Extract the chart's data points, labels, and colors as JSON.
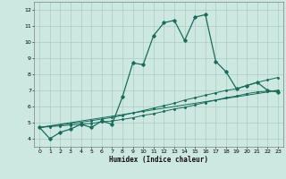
{
  "xlabel": "Humidex (Indice chaleur)",
  "bg_color": "#cce8e0",
  "grid_color": "#aaccC4",
  "line_color": "#1a6b5a",
  "xlim": [
    -0.5,
    23.5
  ],
  "ylim": [
    3.5,
    12.5
  ],
  "xticks": [
    0,
    1,
    2,
    3,
    4,
    5,
    6,
    7,
    8,
    9,
    10,
    11,
    12,
    13,
    14,
    15,
    16,
    17,
    18,
    19,
    20,
    21,
    22,
    23
  ],
  "yticks": [
    4,
    5,
    6,
    7,
    8,
    9,
    10,
    11,
    12
  ],
  "series1_x": [
    0,
    1,
    2,
    3,
    4,
    5,
    6,
    7,
    8,
    9,
    10,
    11,
    12,
    13,
    14,
    15,
    16,
    17,
    18,
    19,
    20,
    21,
    22,
    23
  ],
  "series1_y": [
    4.7,
    4.0,
    4.4,
    4.6,
    4.9,
    4.7,
    5.1,
    4.9,
    6.6,
    8.7,
    8.6,
    10.4,
    11.2,
    11.35,
    10.1,
    11.55,
    11.7,
    8.8,
    8.15,
    7.1,
    7.3,
    7.5,
    7.0,
    6.9
  ],
  "series2_x": [
    0,
    1,
    2,
    3,
    4,
    5,
    6,
    7,
    8,
    9,
    10,
    11,
    12,
    13,
    14,
    15,
    16,
    17,
    18,
    19,
    20,
    21,
    22,
    23
  ],
  "series2_y": [
    4.7,
    4.75,
    4.8,
    4.85,
    4.9,
    4.95,
    5.05,
    5.1,
    5.2,
    5.3,
    5.45,
    5.55,
    5.7,
    5.85,
    5.95,
    6.1,
    6.25,
    6.4,
    6.55,
    6.65,
    6.8,
    6.9,
    6.95,
    7.0
  ],
  "series3_x": [
    0,
    1,
    2,
    3,
    4,
    5,
    6,
    7,
    8,
    9,
    10,
    11,
    12,
    13,
    14,
    15,
    16,
    17,
    18,
    19,
    20,
    21,
    22,
    23
  ],
  "series3_y": [
    4.7,
    4.78,
    4.86,
    4.94,
    5.02,
    5.12,
    5.22,
    5.32,
    5.45,
    5.6,
    5.75,
    5.9,
    6.05,
    6.2,
    6.4,
    6.55,
    6.7,
    6.85,
    7.0,
    7.1,
    7.3,
    7.5,
    7.65,
    7.8
  ],
  "series4_x": [
    0,
    23
  ],
  "series4_y": [
    4.7,
    7.0
  ]
}
